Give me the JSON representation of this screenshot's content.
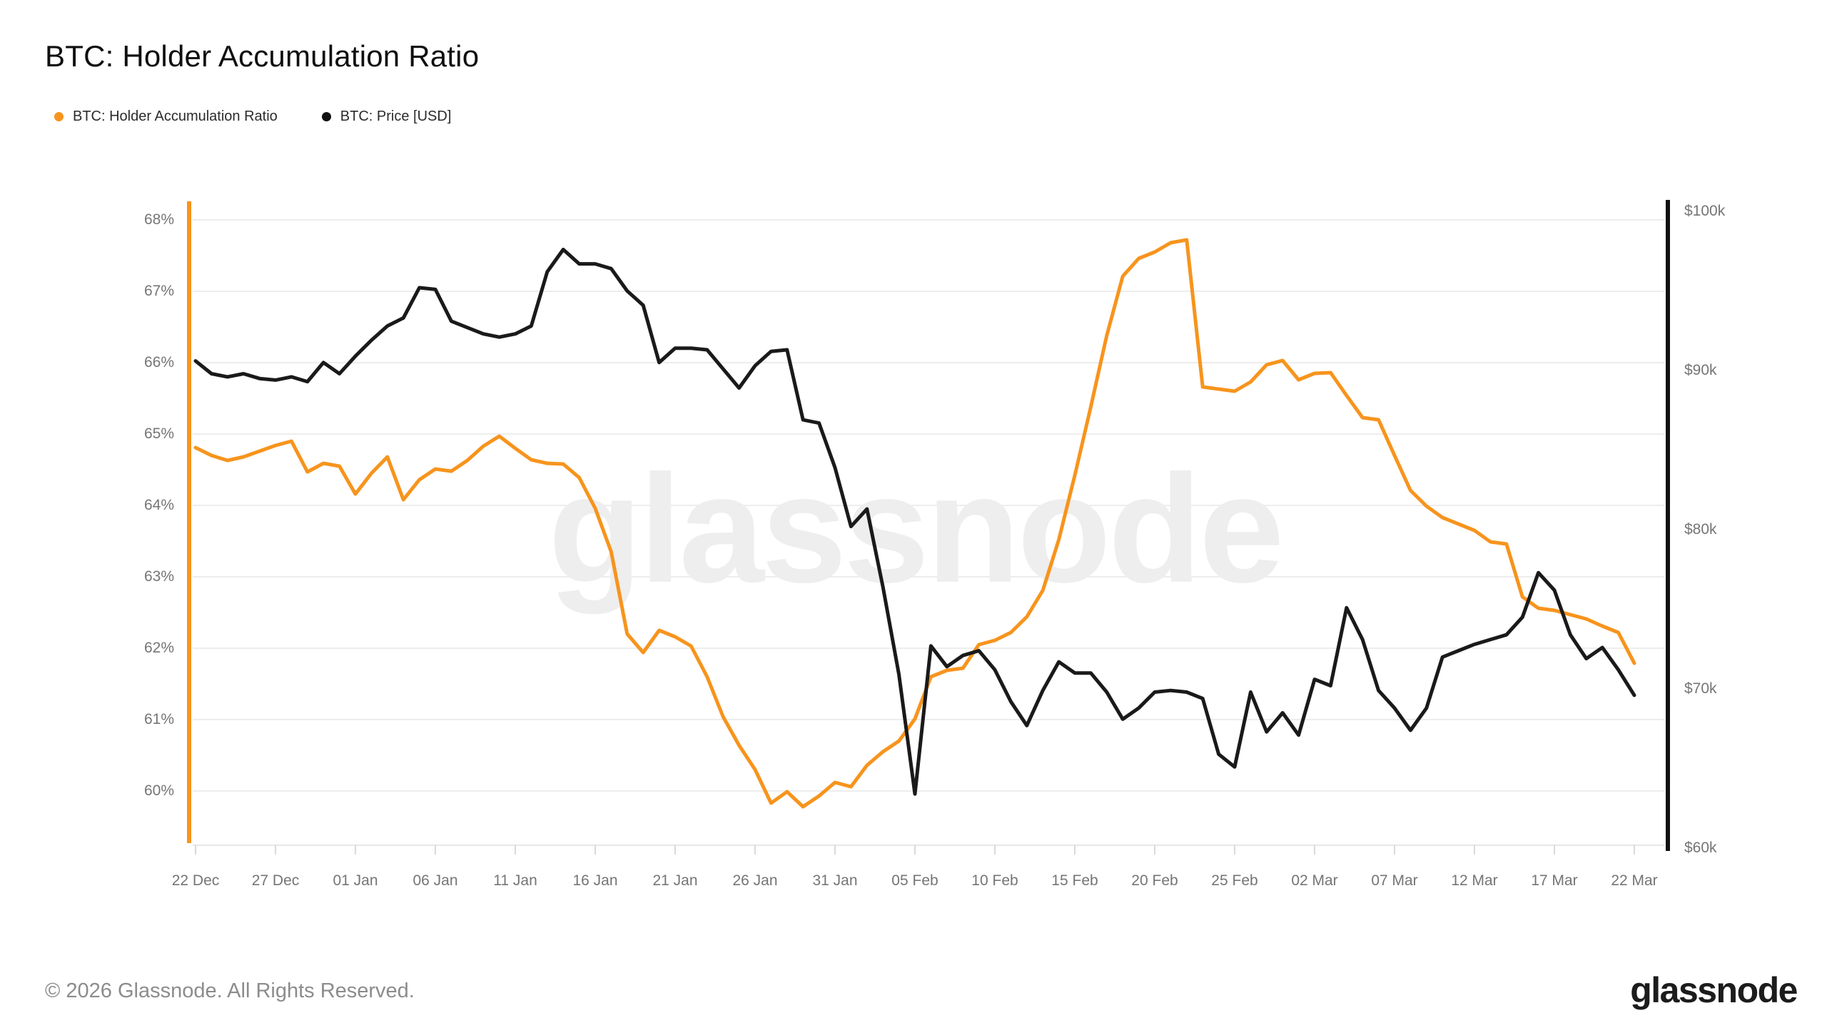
{
  "title": "BTC: Holder Accumulation Ratio",
  "legend": {
    "items": [
      {
        "label": "BTC: Holder Accumulation Ratio",
        "color": "#F7941D"
      },
      {
        "label": "BTC: Price [USD]",
        "color": "#111111"
      }
    ]
  },
  "watermark": "glassnode",
  "footer": {
    "copyright": "© 2026 Glassnode. All Rights Reserved.",
    "logo_text": "glassnode"
  },
  "chart_data": {
    "type": "line",
    "title": "BTC: Holder Accumulation Ratio",
    "x_start": "22 Dec",
    "x_end": "22 Mar",
    "x_interval_days": 1,
    "x_tick_labels": [
      "22 Dec",
      "27 Dec",
      "01 Jan",
      "06 Jan",
      "11 Jan",
      "16 Jan",
      "21 Jan",
      "26 Jan",
      "31 Jan",
      "05 Feb",
      "10 Feb",
      "15 Feb",
      "20 Feb",
      "25 Feb",
      "02 Mar",
      "07 Mar",
      "12 Mar",
      "17 Mar",
      "22 Mar"
    ],
    "left_axis": {
      "unit": "%",
      "tick_labels": [
        "68%",
        "67%",
        "66%",
        "65%",
        "64%",
        "63%",
        "62%",
        "61%",
        "60%"
      ],
      "tick_values": [
        68,
        67,
        66,
        65,
        64,
        63,
        62,
        61,
        60
      ],
      "axis_color": "#F7941D",
      "grid": true
    },
    "right_axis": {
      "unit": "USD",
      "tick_labels": [
        "$100k",
        "$90k",
        "$80k",
        "$70k",
        "$60k"
      ],
      "tick_values": [
        100,
        90,
        80,
        70,
        60
      ],
      "axis_color": "#111111",
      "grid": false
    },
    "series": [
      {
        "name": "BTC: Holder Accumulation Ratio",
        "axis": "left",
        "unit": "%",
        "color": "#F7941D",
        "values": [
          64.81,
          64.7,
          64.63,
          64.68,
          64.76,
          64.84,
          64.9,
          64.47,
          64.59,
          64.55,
          64.16,
          64.45,
          64.68,
          64.08,
          64.36,
          64.51,
          64.48,
          64.63,
          64.83,
          64.97,
          64.8,
          64.64,
          64.59,
          64.58,
          64.39,
          63.96,
          63.35,
          62.2,
          61.94,
          62.25,
          62.16,
          62.03,
          61.6,
          61.04,
          60.64,
          60.3,
          59.83,
          59.99,
          59.78,
          59.93,
          60.12,
          60.06,
          60.36,
          60.55,
          60.7,
          61.01,
          61.6,
          61.69,
          61.72,
          62.05,
          62.11,
          62.22,
          62.44,
          62.81,
          63.52,
          64.42,
          65.38,
          66.38,
          67.21,
          67.46,
          67.55,
          67.68,
          67.72,
          65.66,
          65.63,
          65.6,
          65.73,
          65.97,
          66.03,
          65.76,
          65.85,
          65.86,
          65.54,
          65.23,
          65.2,
          64.7,
          64.21,
          63.99,
          63.83,
          63.74,
          63.65,
          63.49,
          63.46,
          62.72,
          62.56,
          62.53,
          62.47,
          62.41,
          62.31,
          62.22,
          61.79
        ]
      },
      {
        "name": "BTC: Price [USD]",
        "axis": "right",
        "unit": "USD thousands",
        "color": "#1A1A1A",
        "values": [
          90.6,
          89.8,
          89.6,
          89.8,
          89.5,
          89.4,
          89.6,
          89.3,
          90.5,
          89.8,
          90.9,
          91.9,
          92.8,
          93.3,
          95.2,
          95.1,
          93.1,
          92.7,
          92.3,
          92.1,
          92.3,
          92.8,
          96.2,
          97.6,
          96.7,
          96.7,
          96.4,
          95.0,
          94.1,
          90.5,
          91.4,
          91.4,
          91.3,
          90.1,
          88.9,
          90.3,
          91.2,
          91.3,
          86.9,
          86.7,
          83.9,
          80.2,
          81.3,
          76.4,
          70.9,
          63.4,
          72.7,
          71.4,
          72.1,
          72.4,
          71.2,
          69.2,
          67.7,
          69.9,
          71.7,
          71.0,
          71.0,
          69.8,
          68.1,
          68.8,
          69.8,
          69.9,
          69.8,
          69.4,
          65.9,
          65.1,
          69.8,
          67.3,
          68.5,
          67.1,
          70.6,
          70.2,
          75.1,
          73.1,
          69.9,
          68.8,
          67.4,
          68.8,
          72.0,
          72.4,
          72.8,
          73.1,
          73.4,
          74.5,
          77.3,
          76.2,
          73.4,
          71.9,
          72.6,
          71.2,
          69.6
        ]
      }
    ]
  }
}
